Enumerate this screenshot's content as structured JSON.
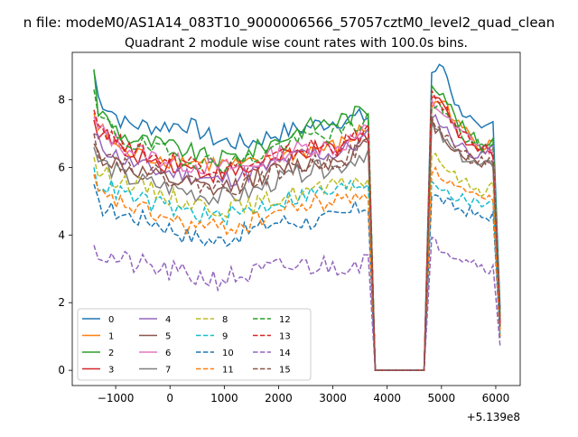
{
  "chart_data": {
    "type": "line",
    "suptitle": "n file: modeM0/AS1A14_083T10_9000006566_57057cztM0_level2_quad_clean",
    "title": "Quadrant 2 module wise count rates with 100.0s bins.",
    "xlabel": "",
    "ylabel": "",
    "x_offset_label": "+5.139e8",
    "xlim": [
      -1800,
      6450
    ],
    "ylim": [
      -0.45,
      9.4
    ],
    "x_ticks": [
      -1000,
      0,
      1000,
      2000,
      3000,
      4000,
      5000,
      6000
    ],
    "x_tick_labels": [
      "−1000",
      "0",
      "1000",
      "2000",
      "3000",
      "4000",
      "5000",
      "6000"
    ],
    "y_ticks": [
      0,
      2,
      4,
      6,
      8
    ],
    "y_tick_labels": [
      "0",
      "2",
      "4",
      "6",
      "8"
    ],
    "grid": false,
    "legend_position": "lower-left",
    "legend_columns": 4,
    "gap": {
      "start": 3700,
      "end": 4700
    },
    "series": [
      {
        "name": "0",
        "color": "#1f77b4",
        "dash": "solid",
        "start": 8.85,
        "seg1": [
          8.2,
          7.3,
          7.2,
          7.3,
          6.8,
          6.7,
          7.0,
          7.2,
          7.4,
          7.5
        ],
        "seg2": [
          8.8,
          9.0,
          7.8,
          7.5,
          7.0,
          7.3
        ],
        "end": 1.8
      },
      {
        "name": "1",
        "color": "#ff7f0e",
        "dash": "solid",
        "start": 7.6,
        "seg1": [
          7.3,
          6.4,
          6.3,
          6.2,
          6.1,
          6.0,
          6.3,
          6.5,
          6.6,
          7.2
        ],
        "seg2": [
          7.8,
          8.0,
          7.3,
          7.0,
          6.6,
          6.9
        ],
        "end": 1.5
      },
      {
        "name": "2",
        "color": "#2ca02c",
        "dash": "solid",
        "start": 8.9,
        "seg1": [
          7.8,
          6.9,
          6.7,
          6.5,
          6.2,
          6.4,
          6.8,
          7.2,
          7.4,
          7.7
        ],
        "seg2": [
          8.5,
          8.2,
          7.4,
          7.0,
          6.7,
          6.8
        ],
        "end": 1.6
      },
      {
        "name": "3",
        "color": "#d62728",
        "dash": "solid",
        "start": 7.4,
        "seg1": [
          7.2,
          6.5,
          6.2,
          6.0,
          5.8,
          5.9,
          6.2,
          6.5,
          6.5,
          7.0
        ],
        "seg2": [
          8.2,
          7.9,
          7.0,
          6.8,
          6.5,
          6.4
        ],
        "end": 1.4
      },
      {
        "name": "4",
        "color": "#9467bd",
        "dash": "solid",
        "start": 7.0,
        "seg1": [
          6.8,
          6.2,
          5.9,
          5.8,
          5.6,
          5.8,
          6.1,
          6.4,
          6.4,
          6.9
        ],
        "seg2": [
          7.6,
          7.2,
          6.7,
          6.5,
          6.3,
          6.6
        ],
        "end": 1.3
      },
      {
        "name": "5",
        "color": "#8c564b",
        "dash": "solid",
        "start": 6.7,
        "seg1": [
          6.4,
          6.0,
          5.7,
          5.5,
          5.3,
          5.6,
          5.9,
          6.1,
          6.2,
          6.7
        ],
        "seg2": [
          7.3,
          6.9,
          6.5,
          6.3,
          6.1,
          6.2
        ],
        "end": 1.3
      },
      {
        "name": "6",
        "color": "#e377c2",
        "dash": "solid",
        "start": 7.5,
        "seg1": [
          7.2,
          6.6,
          6.3,
          6.1,
          6.0,
          6.0,
          6.4,
          6.6,
          6.6,
          7.1
        ],
        "seg2": [
          7.9,
          7.6,
          7.1,
          6.9,
          6.6,
          6.5
        ],
        "end": 1.4
      },
      {
        "name": "7",
        "color": "#7f7f7f",
        "dash": "solid",
        "start": 6.6,
        "seg1": [
          6.3,
          5.7,
          5.5,
          5.3,
          5.1,
          5.2,
          5.6,
          5.9,
          6.0,
          6.5
        ],
        "seg2": [
          7.2,
          6.8,
          6.4,
          6.2,
          6.0,
          6.1
        ],
        "end": 1.2
      },
      {
        "name": "8",
        "color": "#bcbd22",
        "dash": "dashed",
        "start": 6.3,
        "seg1": [
          5.9,
          5.6,
          5.3,
          5.0,
          4.8,
          4.8,
          5.1,
          5.3,
          5.4,
          5.7
        ],
        "seg2": [
          6.3,
          6.1,
          5.7,
          5.5,
          5.3,
          5.5
        ],
        "end": 1.1
      },
      {
        "name": "9",
        "color": "#17becf",
        "dash": "dashed",
        "start": 6.0,
        "seg1": [
          5.6,
          5.2,
          4.9,
          4.7,
          4.5,
          4.7,
          5.0,
          5.2,
          5.3,
          5.6
        ],
        "seg2": [
          5.6,
          5.4,
          5.1,
          5.0,
          4.9,
          5.1
        ],
        "end": 1.0
      },
      {
        "name": "10",
        "color": "#1f77b4",
        "dash": "dashed",
        "start": 5.5,
        "seg1": [
          4.9,
          4.6,
          4.4,
          4.0,
          3.8,
          4.1,
          4.4,
          4.4,
          4.5,
          4.9
        ],
        "seg2": [
          5.2,
          5.0,
          4.8,
          4.7,
          4.5,
          4.6
        ],
        "end": 0.9
      },
      {
        "name": "11",
        "color": "#ff7f0e",
        "dash": "dashed",
        "start": 5.8,
        "seg1": [
          5.2,
          4.9,
          4.6,
          4.3,
          4.2,
          4.3,
          4.7,
          4.9,
          5.0,
          5.3
        ],
        "seg2": [
          5.9,
          5.7,
          5.4,
          5.2,
          5.0,
          5.1
        ],
        "end": 1.0
      },
      {
        "name": "12",
        "color": "#2ca02c",
        "dash": "dashed",
        "start": 8.3,
        "seg1": [
          7.6,
          6.8,
          6.5,
          6.3,
          6.1,
          6.2,
          6.6,
          6.9,
          7.0,
          7.4
        ],
        "seg2": [
          7.9,
          7.7,
          7.1,
          6.8,
          6.6,
          6.6
        ],
        "end": 1.5
      },
      {
        "name": "13",
        "color": "#d62728",
        "dash": "dashed",
        "start": 7.7,
        "seg1": [
          7.4,
          6.6,
          6.3,
          6.2,
          6.0,
          6.0,
          6.3,
          6.6,
          6.6,
          7.1
        ],
        "seg2": [
          8.1,
          7.8,
          7.1,
          6.9,
          6.6,
          6.5
        ],
        "end": 1.4
      },
      {
        "name": "14",
        "color": "#9467bd",
        "dash": "dashed",
        "start": 3.7,
        "seg1": [
          3.5,
          3.2,
          3.0,
          2.8,
          2.7,
          2.8,
          3.0,
          3.1,
          3.1,
          3.3
        ],
        "seg2": [
          3.8,
          3.6,
          3.4,
          3.3,
          3.1,
          3.0
        ],
        "end": 0.7
      },
      {
        "name": "15",
        "color": "#8c564b",
        "dash": "dashed",
        "start": 7.0,
        "seg1": [
          6.6,
          6.1,
          5.8,
          5.6,
          5.4,
          5.5,
          5.9,
          6.1,
          6.2,
          6.7
        ],
        "seg2": [
          7.4,
          7.0,
          6.6,
          6.3,
          6.2,
          6.2
        ],
        "end": 1.3
      }
    ]
  }
}
